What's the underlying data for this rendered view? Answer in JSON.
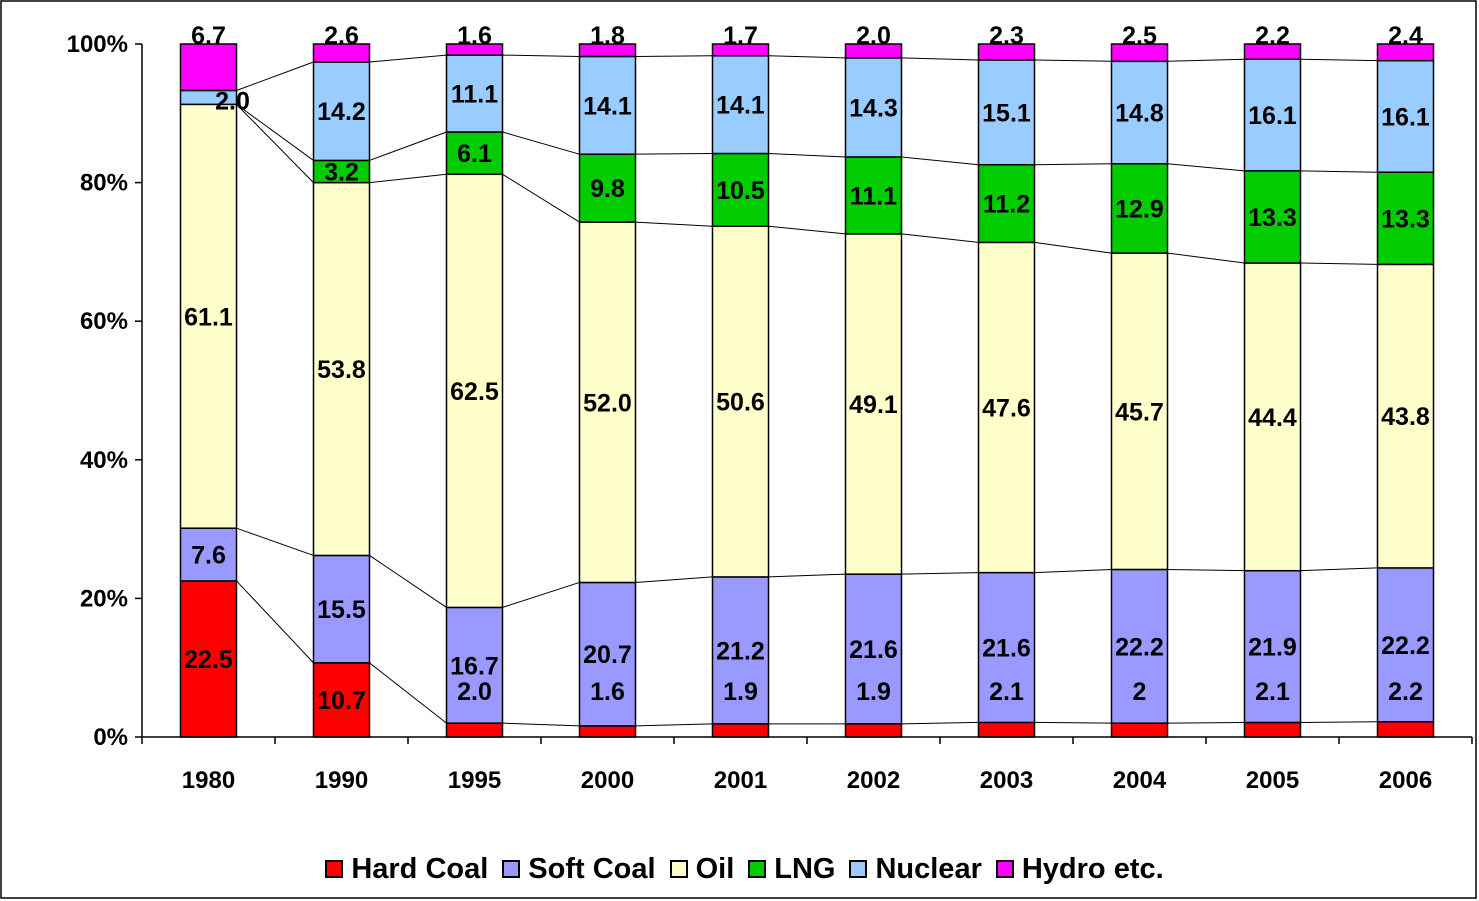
{
  "chart_data": {
    "type": "bar",
    "stacked": true,
    "percent": true,
    "categories": [
      "1980",
      "1990",
      "1995",
      "2000",
      "2001",
      "2002",
      "2003",
      "2004",
      "2005",
      "2006"
    ],
    "series": [
      {
        "name": "Hard Coal",
        "color": "#ff0000",
        "values": [
          22.5,
          10.7,
          2.0,
          1.6,
          1.9,
          1.9,
          2.1,
          2.0,
          2.1,
          2.2
        ],
        "labels": [
          "22.5",
          "10.7",
          "",
          "",
          "",
          "",
          "",
          "",
          "",
          ""
        ]
      },
      {
        "name": "Soft Coal",
        "color": "#9999ff",
        "values": [
          7.6,
          15.5,
          16.7,
          20.7,
          21.2,
          21.6,
          21.6,
          22.2,
          21.9,
          22.2
        ],
        "labels": [
          "7.6",
          "15.5",
          "16.7",
          "20.7",
          "21.2",
          "21.6",
          "21.6",
          "22.2",
          "21.9",
          "22.2"
        ]
      },
      {
        "name": "Oil",
        "color": "#ffffcc",
        "values": [
          61.1,
          53.8,
          62.5,
          52.0,
          50.6,
          49.1,
          47.6,
          45.7,
          44.4,
          43.8
        ],
        "labels": [
          "61.1",
          "53.8",
          "62.5",
          "52.0",
          "50.6",
          "49.1",
          "47.6",
          "45.7",
          "44.4",
          "43.8"
        ]
      },
      {
        "name": "LNG",
        "color": "#00cc00",
        "values": [
          0.0,
          3.2,
          6.1,
          9.8,
          10.5,
          11.1,
          11.2,
          12.9,
          13.3,
          13.3
        ],
        "labels": [
          "",
          "3.2",
          "6.1",
          "9.8",
          "10.5",
          "11.1",
          "11.2",
          "12.9",
          "13.3",
          "13.3"
        ]
      },
      {
        "name": "Nuclear",
        "color": "#99ccff",
        "values": [
          2.0,
          14.2,
          11.1,
          14.1,
          14.1,
          14.3,
          15.1,
          14.8,
          16.1,
          16.1
        ],
        "labels": [
          "2.0",
          "14.2",
          "11.1",
          "14.1",
          "14.1",
          "14.3",
          "15.1",
          "14.8",
          "16.1",
          "16.1"
        ]
      },
      {
        "name": "Hydro etc.",
        "color": "#ff00ff",
        "values": [
          6.7,
          2.6,
          1.6,
          1.8,
          1.7,
          2.0,
          2.3,
          2.5,
          2.2,
          2.4
        ],
        "labels": [
          "6.7",
          "2.6",
          "1.6",
          "1.8",
          "1.7",
          "2.0",
          "2.3",
          "2.5",
          "2.2",
          "2.4"
        ]
      }
    ],
    "extra_labels": [
      {
        "category_index": 2,
        "text": "2.0"
      },
      {
        "category_index": 3,
        "text": "1.6"
      },
      {
        "category_index": 4,
        "text": "1.9"
      },
      {
        "category_index": 5,
        "text": "1.9"
      },
      {
        "category_index": 6,
        "text": "2.1"
      },
      {
        "category_index": 7,
        "text": "2"
      },
      {
        "category_index": 8,
        "text": "2.1"
      },
      {
        "category_index": 9,
        "text": "2.2"
      }
    ],
    "y_ticks": [
      "0%",
      "20%",
      "40%",
      "60%",
      "80%",
      "100%"
    ],
    "ylim": [
      0,
      100
    ],
    "legend_position": "bottom",
    "series_lines": true,
    "grid": false
  }
}
